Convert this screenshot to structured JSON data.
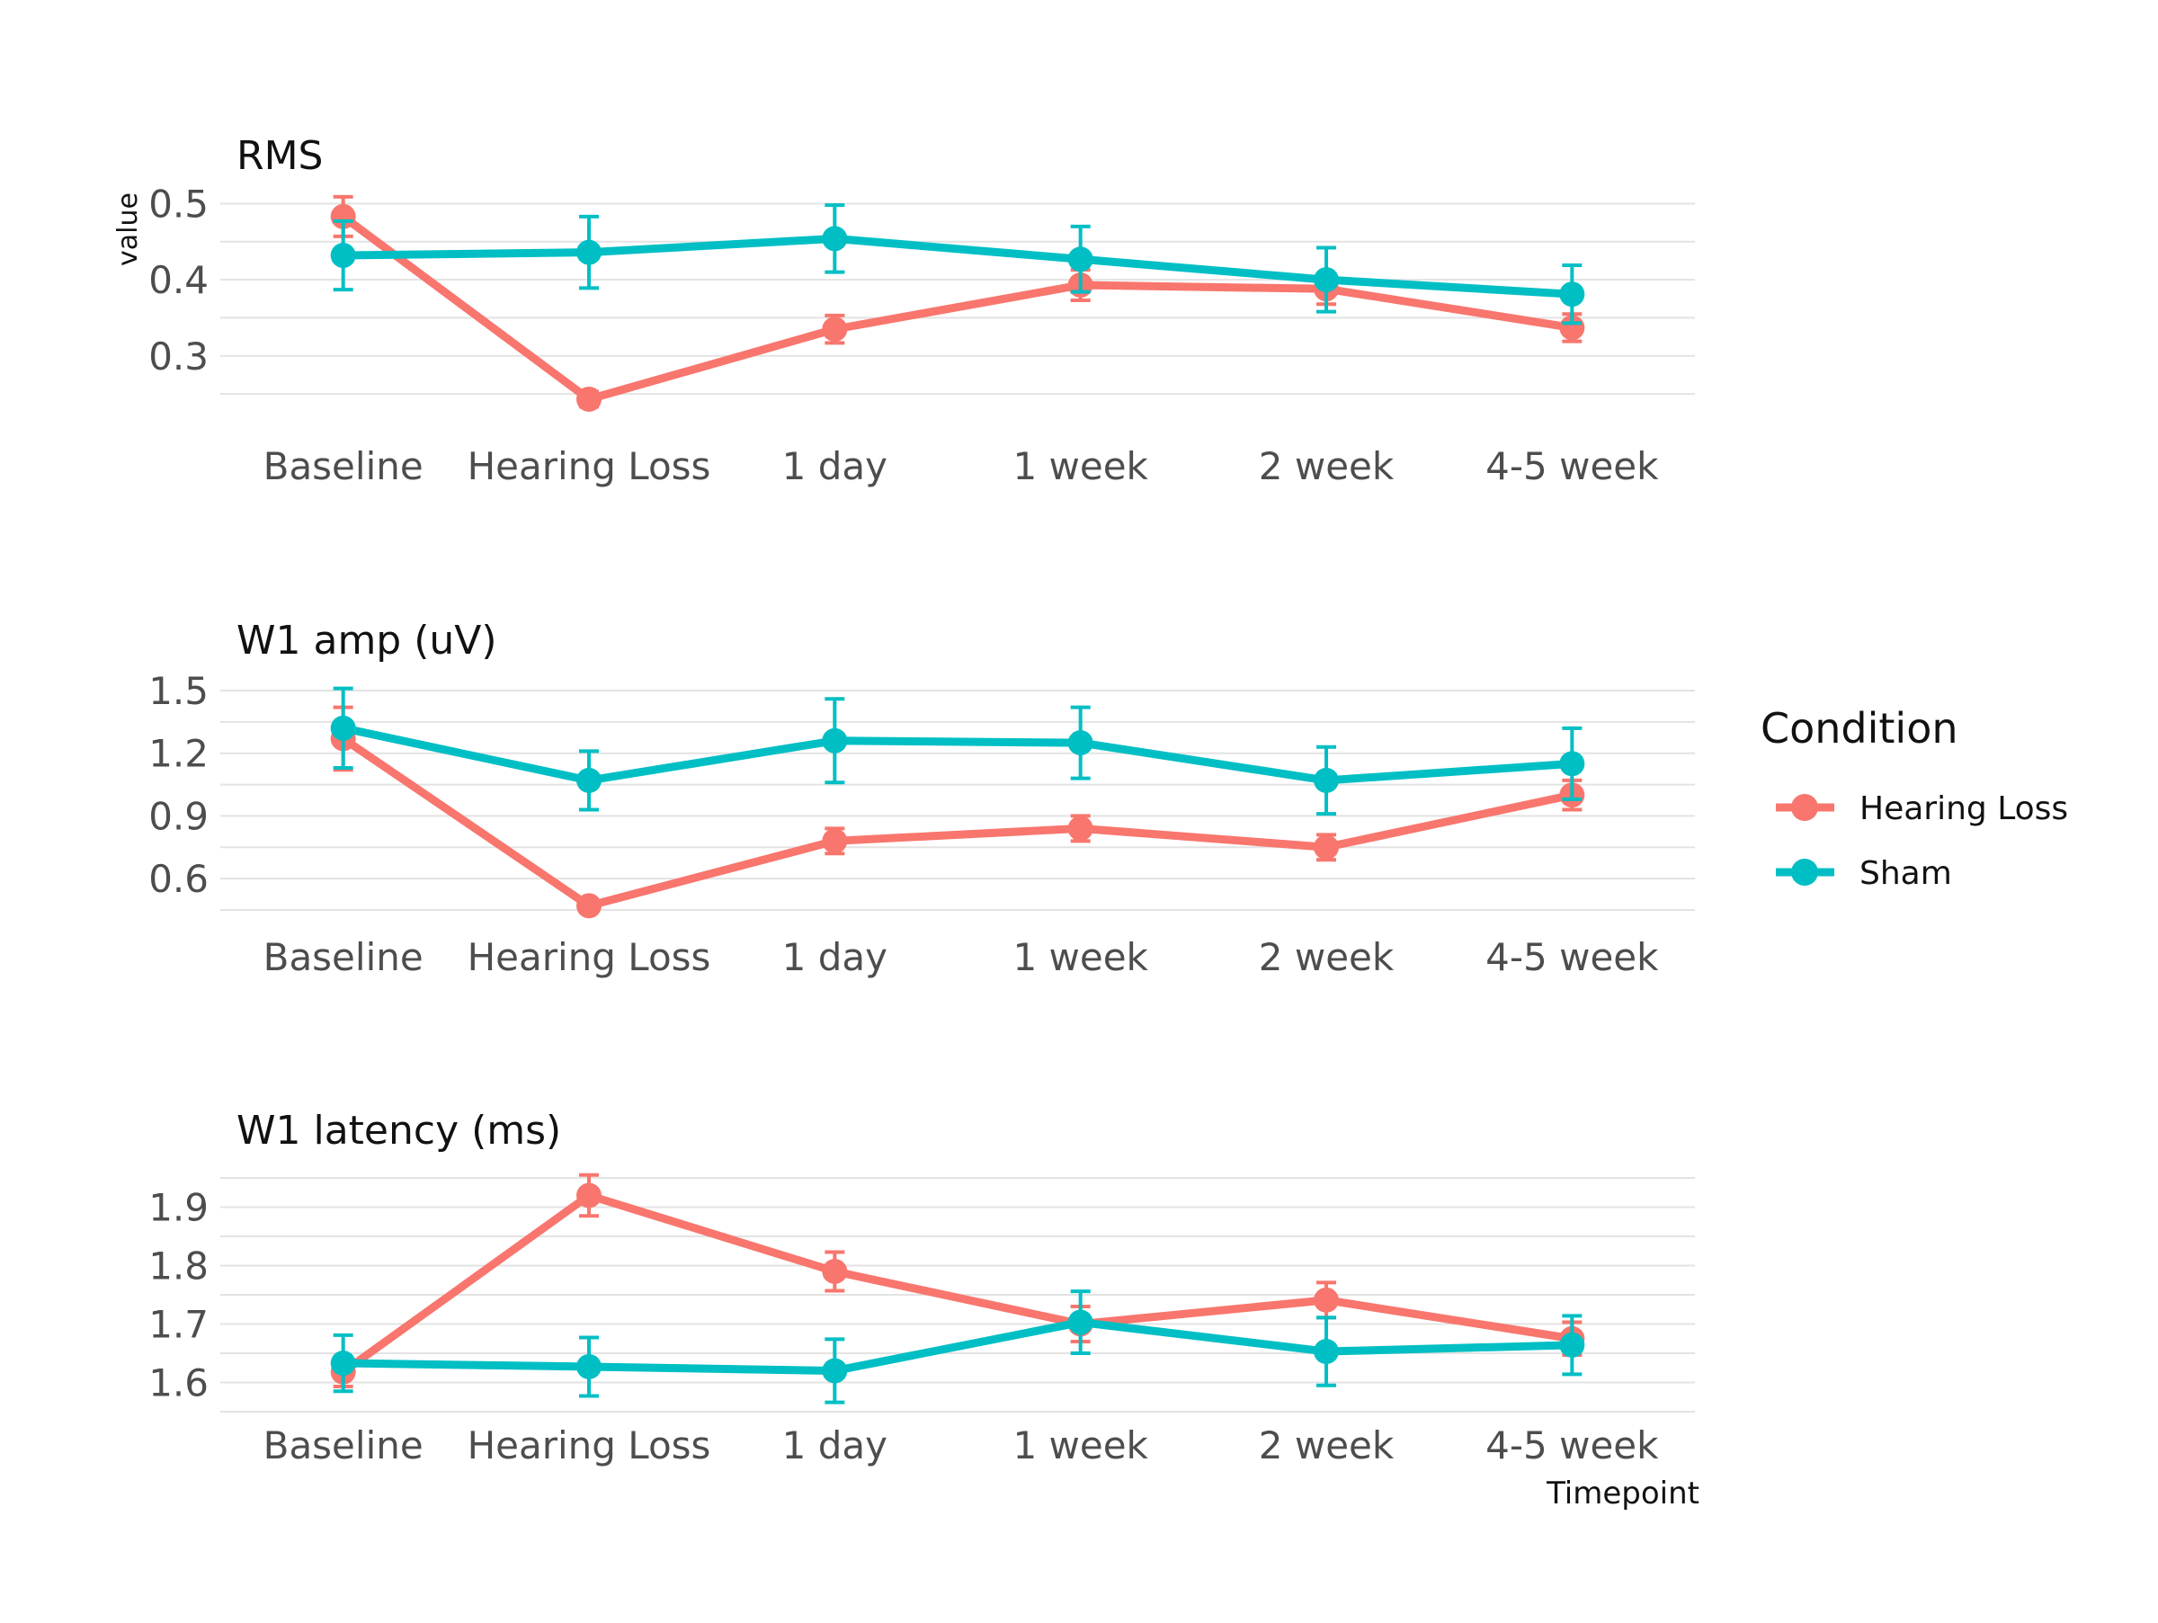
{
  "chart_data": {
    "type": "line",
    "y_axis_title": "value",
    "x_axis_title": "Timepoint",
    "categories": [
      "Baseline",
      "Hearing Loss",
      "1 day",
      "1 week",
      "2 week",
      "4-5 week"
    ],
    "legend": {
      "title": "Condition",
      "placement": "right",
      "entries": [
        {
          "name": "Hearing Loss",
          "color": "#F8766D"
        },
        {
          "name": "Sham",
          "color": "#00BFC4"
        }
      ]
    },
    "grid": true,
    "panels": [
      {
        "title": "RMS",
        "ylim": [
          0.23,
          0.51
        ],
        "yticks": [
          "0.3",
          "0.4",
          "0.5"
        ],
        "series": [
          {
            "name": "Hearing Loss",
            "color": "#F8766D",
            "values": [
              0.483,
              0.243,
              0.335,
              0.393,
              0.388,
              0.337
            ],
            "error": [
              0.026,
              0.01,
              0.018,
              0.02,
              0.02,
              0.018
            ]
          },
          {
            "name": "Sham",
            "color": "#00BFC4",
            "values": [
              0.432,
              0.436,
              0.454,
              0.427,
              0.4,
              0.381
            ],
            "error": [
              0.045,
              0.047,
              0.044,
              0.043,
              0.042,
              0.038
            ]
          }
        ]
      },
      {
        "title": "W1 amp (uV)",
        "ylim": [
          0.45,
          1.5
        ],
        "yticks": [
          "0.6",
          "0.9",
          "1.2",
          "1.5"
        ],
        "series": [
          {
            "name": "Hearing Loss",
            "color": "#F8766D",
            "values": [
              1.27,
              0.47,
              0.78,
              0.84,
              0.75,
              1.0
            ],
            "error": [
              0.15,
              0.03,
              0.06,
              0.06,
              0.06,
              0.07
            ]
          },
          {
            "name": "Sham",
            "color": "#00BFC4",
            "values": [
              1.32,
              1.07,
              1.26,
              1.25,
              1.07,
              1.15
            ],
            "error": [
              0.19,
              0.14,
              0.2,
              0.17,
              0.16,
              0.17
            ]
          }
        ]
      },
      {
        "title": "W1 latency (ms)",
        "ylim": [
          1.55,
          1.95
        ],
        "yticks": [
          "1.6",
          "1.7",
          "1.8",
          "1.9"
        ],
        "series": [
          {
            "name": "Hearing Loss",
            "color": "#F8766D",
            "values": [
              1.618,
              1.92,
              1.79,
              1.7,
              1.741,
              1.675
            ],
            "error": [
              0.025,
              0.035,
              0.033,
              0.03,
              0.03,
              0.028
            ]
          },
          {
            "name": "Sham",
            "color": "#00BFC4",
            "values": [
              1.633,
              1.627,
              1.62,
              1.703,
              1.653,
              1.664
            ],
            "error": [
              0.048,
              0.05,
              0.054,
              0.053,
              0.058,
              0.05
            ]
          }
        ]
      }
    ]
  }
}
